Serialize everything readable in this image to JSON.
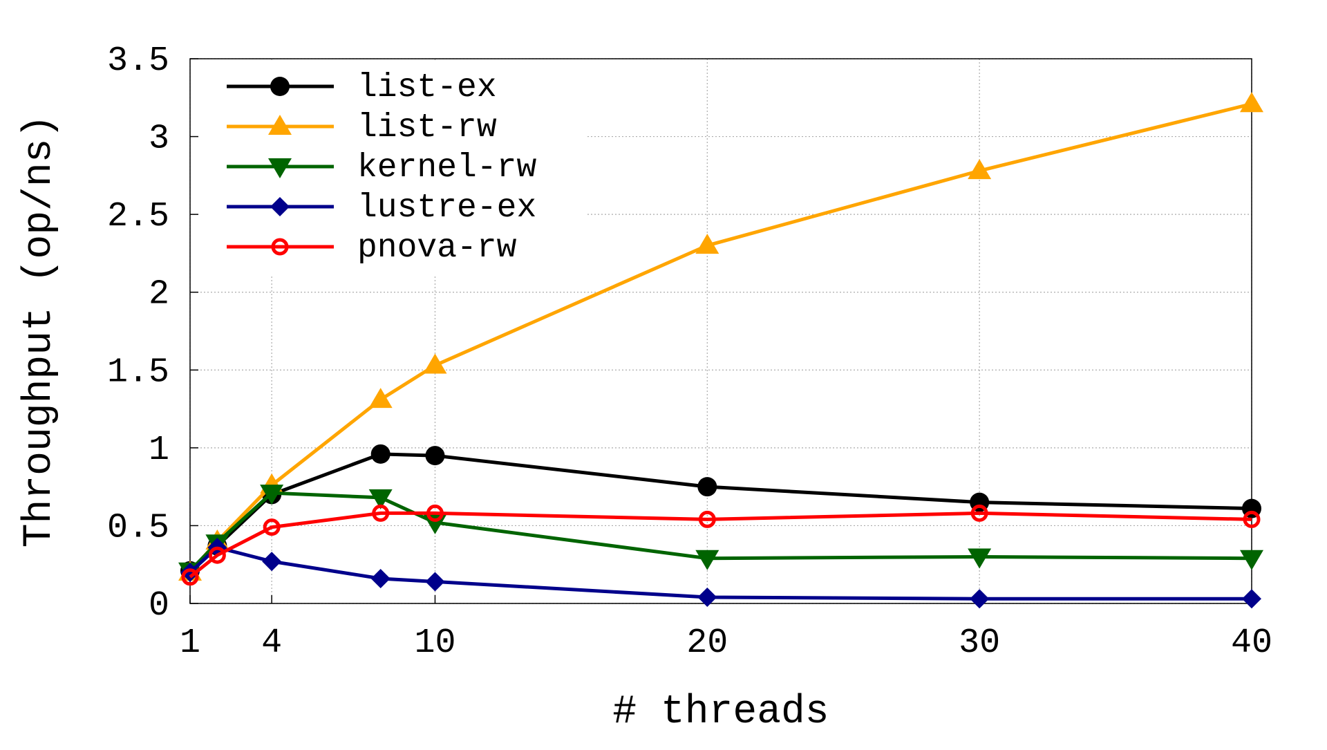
{
  "chart_data": {
    "type": "line",
    "x_label": "# threads",
    "y_label": "Throughput (op/ns)",
    "x": [
      1,
      2,
      4,
      8,
      10,
      20,
      30,
      40
    ],
    "xlim": [
      1,
      40
    ],
    "xticks": [
      1,
      4,
      10,
      20,
      30,
      40
    ],
    "ylim": [
      0,
      3.5
    ],
    "yticks": [
      0,
      0.5,
      1,
      1.5,
      2,
      2.5,
      3,
      3.5
    ],
    "grid": true,
    "legend": "top-left",
    "series": [
      {
        "name": "list-ex",
        "color": "#000000",
        "marker": "circle",
        "values": [
          0.21,
          0.37,
          0.7,
          0.96,
          0.95,
          0.75,
          0.65,
          0.61
        ]
      },
      {
        "name": "list-rw",
        "color": "#ffa500",
        "marker": "triangle-up",
        "values": [
          0.2,
          0.4,
          0.76,
          1.31,
          1.53,
          2.3,
          2.78,
          3.21
        ]
      },
      {
        "name": "kernel-rw",
        "color": "#006400",
        "marker": "triangle-down",
        "values": [
          0.21,
          0.39,
          0.71,
          0.68,
          0.52,
          0.29,
          0.3,
          0.29
        ]
      },
      {
        "name": "lustre-ex",
        "color": "#00008b",
        "marker": "diamond",
        "values": [
          0.2,
          0.36,
          0.27,
          0.16,
          0.14,
          0.04,
          0.03,
          0.03
        ]
      },
      {
        "name": "pnova-rw",
        "color": "#ff0000",
        "marker": "open-circle",
        "values": [
          0.17,
          0.31,
          0.49,
          0.58,
          0.58,
          0.54,
          0.58,
          0.54
        ]
      }
    ]
  }
}
